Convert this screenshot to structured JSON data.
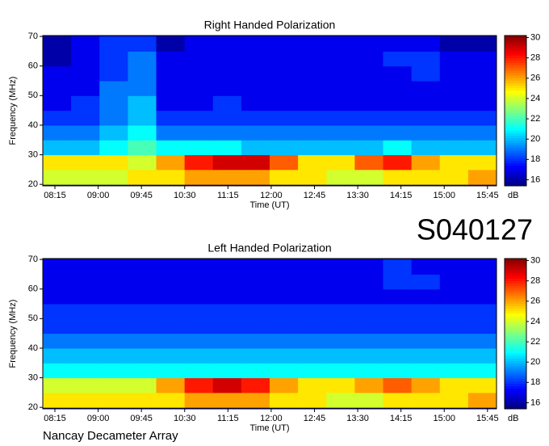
{
  "label": "S040127",
  "footer": "Nancay Decameter Array",
  "chart_data": [
    {
      "type": "heatmap",
      "title": "Right Handed Polarization",
      "xlabel": "Time (UT)",
      "ylabel": "Frequency (MHz)",
      "colorbar_label": "dB",
      "colormap": "jet",
      "xticks": [
        "08:15",
        "09:00",
        "09:45",
        "10:30",
        "11:15",
        "12:00",
        "12:45",
        "13:30",
        "14:15",
        "15:00",
        "15:45"
      ],
      "ylim": [
        19.5,
        70.3
      ],
      "yticks": [
        20,
        30,
        40,
        50,
        60,
        70
      ],
      "ybins": [
        20,
        25,
        30,
        35,
        40,
        45,
        50,
        55,
        60,
        65,
        70
      ],
      "clim": [
        15.4,
        30.2
      ],
      "cticks": [
        16,
        18,
        20,
        22,
        24,
        26,
        28,
        30
      ],
      "z": [
        [
          24,
          24,
          24,
          25,
          25,
          26,
          26,
          26,
          25,
          25,
          24,
          24,
          25,
          25,
          25,
          26
        ],
        [
          25,
          25,
          25,
          24,
          26,
          28,
          29,
          29,
          27,
          25,
          25,
          27,
          28,
          26,
          25,
          25
        ],
        [
          20,
          20,
          21,
          22,
          21,
          21,
          21,
          20,
          20,
          20,
          20,
          20,
          21,
          20,
          20,
          20
        ],
        [
          19,
          19,
          20,
          21,
          19,
          19,
          19,
          19,
          19,
          19,
          19,
          19,
          19,
          19,
          19,
          19
        ],
        [
          18,
          18,
          19,
          20,
          18,
          18,
          18,
          18,
          18,
          18,
          18,
          18,
          18,
          18,
          18,
          18
        ],
        [
          17,
          18,
          19,
          20,
          17,
          17,
          18,
          17,
          17,
          17,
          17,
          17,
          17,
          17,
          17,
          17
        ],
        [
          17,
          17,
          19,
          19,
          17,
          17,
          17,
          17,
          17,
          17,
          17,
          17,
          17,
          17,
          17,
          17
        ],
        [
          17,
          17,
          18,
          19,
          17,
          17,
          17,
          17,
          17,
          17,
          17,
          17,
          17,
          18,
          17,
          17
        ],
        [
          16,
          17,
          18,
          19,
          17,
          17,
          17,
          17,
          17,
          17,
          17,
          17,
          18,
          18,
          17,
          17
        ],
        [
          16,
          17,
          18,
          18,
          16,
          17,
          17,
          17,
          17,
          17,
          17,
          17,
          17,
          17,
          16,
          16
        ]
      ]
    },
    {
      "type": "heatmap",
      "title": "Left Handed Polarization",
      "xlabel": "Time (UT)",
      "ylabel": "Frequency (MHz)",
      "colorbar_label": "dB",
      "colormap": "jet",
      "xticks": [
        "08:15",
        "09:00",
        "09:45",
        "10:30",
        "11:15",
        "12:00",
        "12:45",
        "13:30",
        "14:15",
        "15:00",
        "15:45"
      ],
      "ylim": [
        19.5,
        70.3
      ],
      "yticks": [
        20,
        30,
        40,
        50,
        60,
        70
      ],
      "ybins": [
        20,
        25,
        30,
        35,
        40,
        45,
        50,
        55,
        60,
        65,
        70
      ],
      "clim": [
        15.4,
        30.2
      ],
      "cticks": [
        16,
        18,
        20,
        22,
        24,
        26,
        28,
        30
      ],
      "z": [
        [
          25,
          25,
          25,
          25,
          25,
          26,
          26,
          26,
          25,
          25,
          24,
          24,
          25,
          25,
          25,
          26
        ],
        [
          24,
          24,
          24,
          24,
          26,
          28,
          29,
          28,
          26,
          25,
          25,
          26,
          27,
          26,
          25,
          25
        ],
        [
          21,
          21,
          21,
          21,
          21,
          21,
          21,
          21,
          21,
          21,
          21,
          21,
          21,
          21,
          21,
          21
        ],
        [
          20,
          20,
          20,
          20,
          20,
          20,
          20,
          20,
          20,
          20,
          20,
          20,
          20,
          20,
          20,
          20
        ],
        [
          19,
          19,
          19,
          19,
          19,
          19,
          19,
          19,
          19,
          19,
          19,
          19,
          19,
          19,
          19,
          19
        ],
        [
          18,
          18,
          18,
          18,
          18,
          18,
          18,
          18,
          18,
          18,
          18,
          18,
          18,
          18,
          18,
          18
        ],
        [
          18,
          18,
          18,
          18,
          18,
          18,
          18,
          18,
          18,
          18,
          18,
          18,
          18,
          18,
          18,
          18
        ],
        [
          17,
          17,
          17,
          17,
          17,
          17,
          17,
          17,
          17,
          17,
          17,
          17,
          17,
          17,
          17,
          17
        ],
        [
          17,
          17,
          17,
          17,
          17,
          17,
          17,
          17,
          17,
          17,
          17,
          17,
          18,
          18,
          17,
          17
        ],
        [
          17,
          17,
          17,
          17,
          17,
          17,
          17,
          17,
          17,
          17,
          17,
          17,
          18,
          17,
          17,
          17
        ]
      ]
    }
  ]
}
